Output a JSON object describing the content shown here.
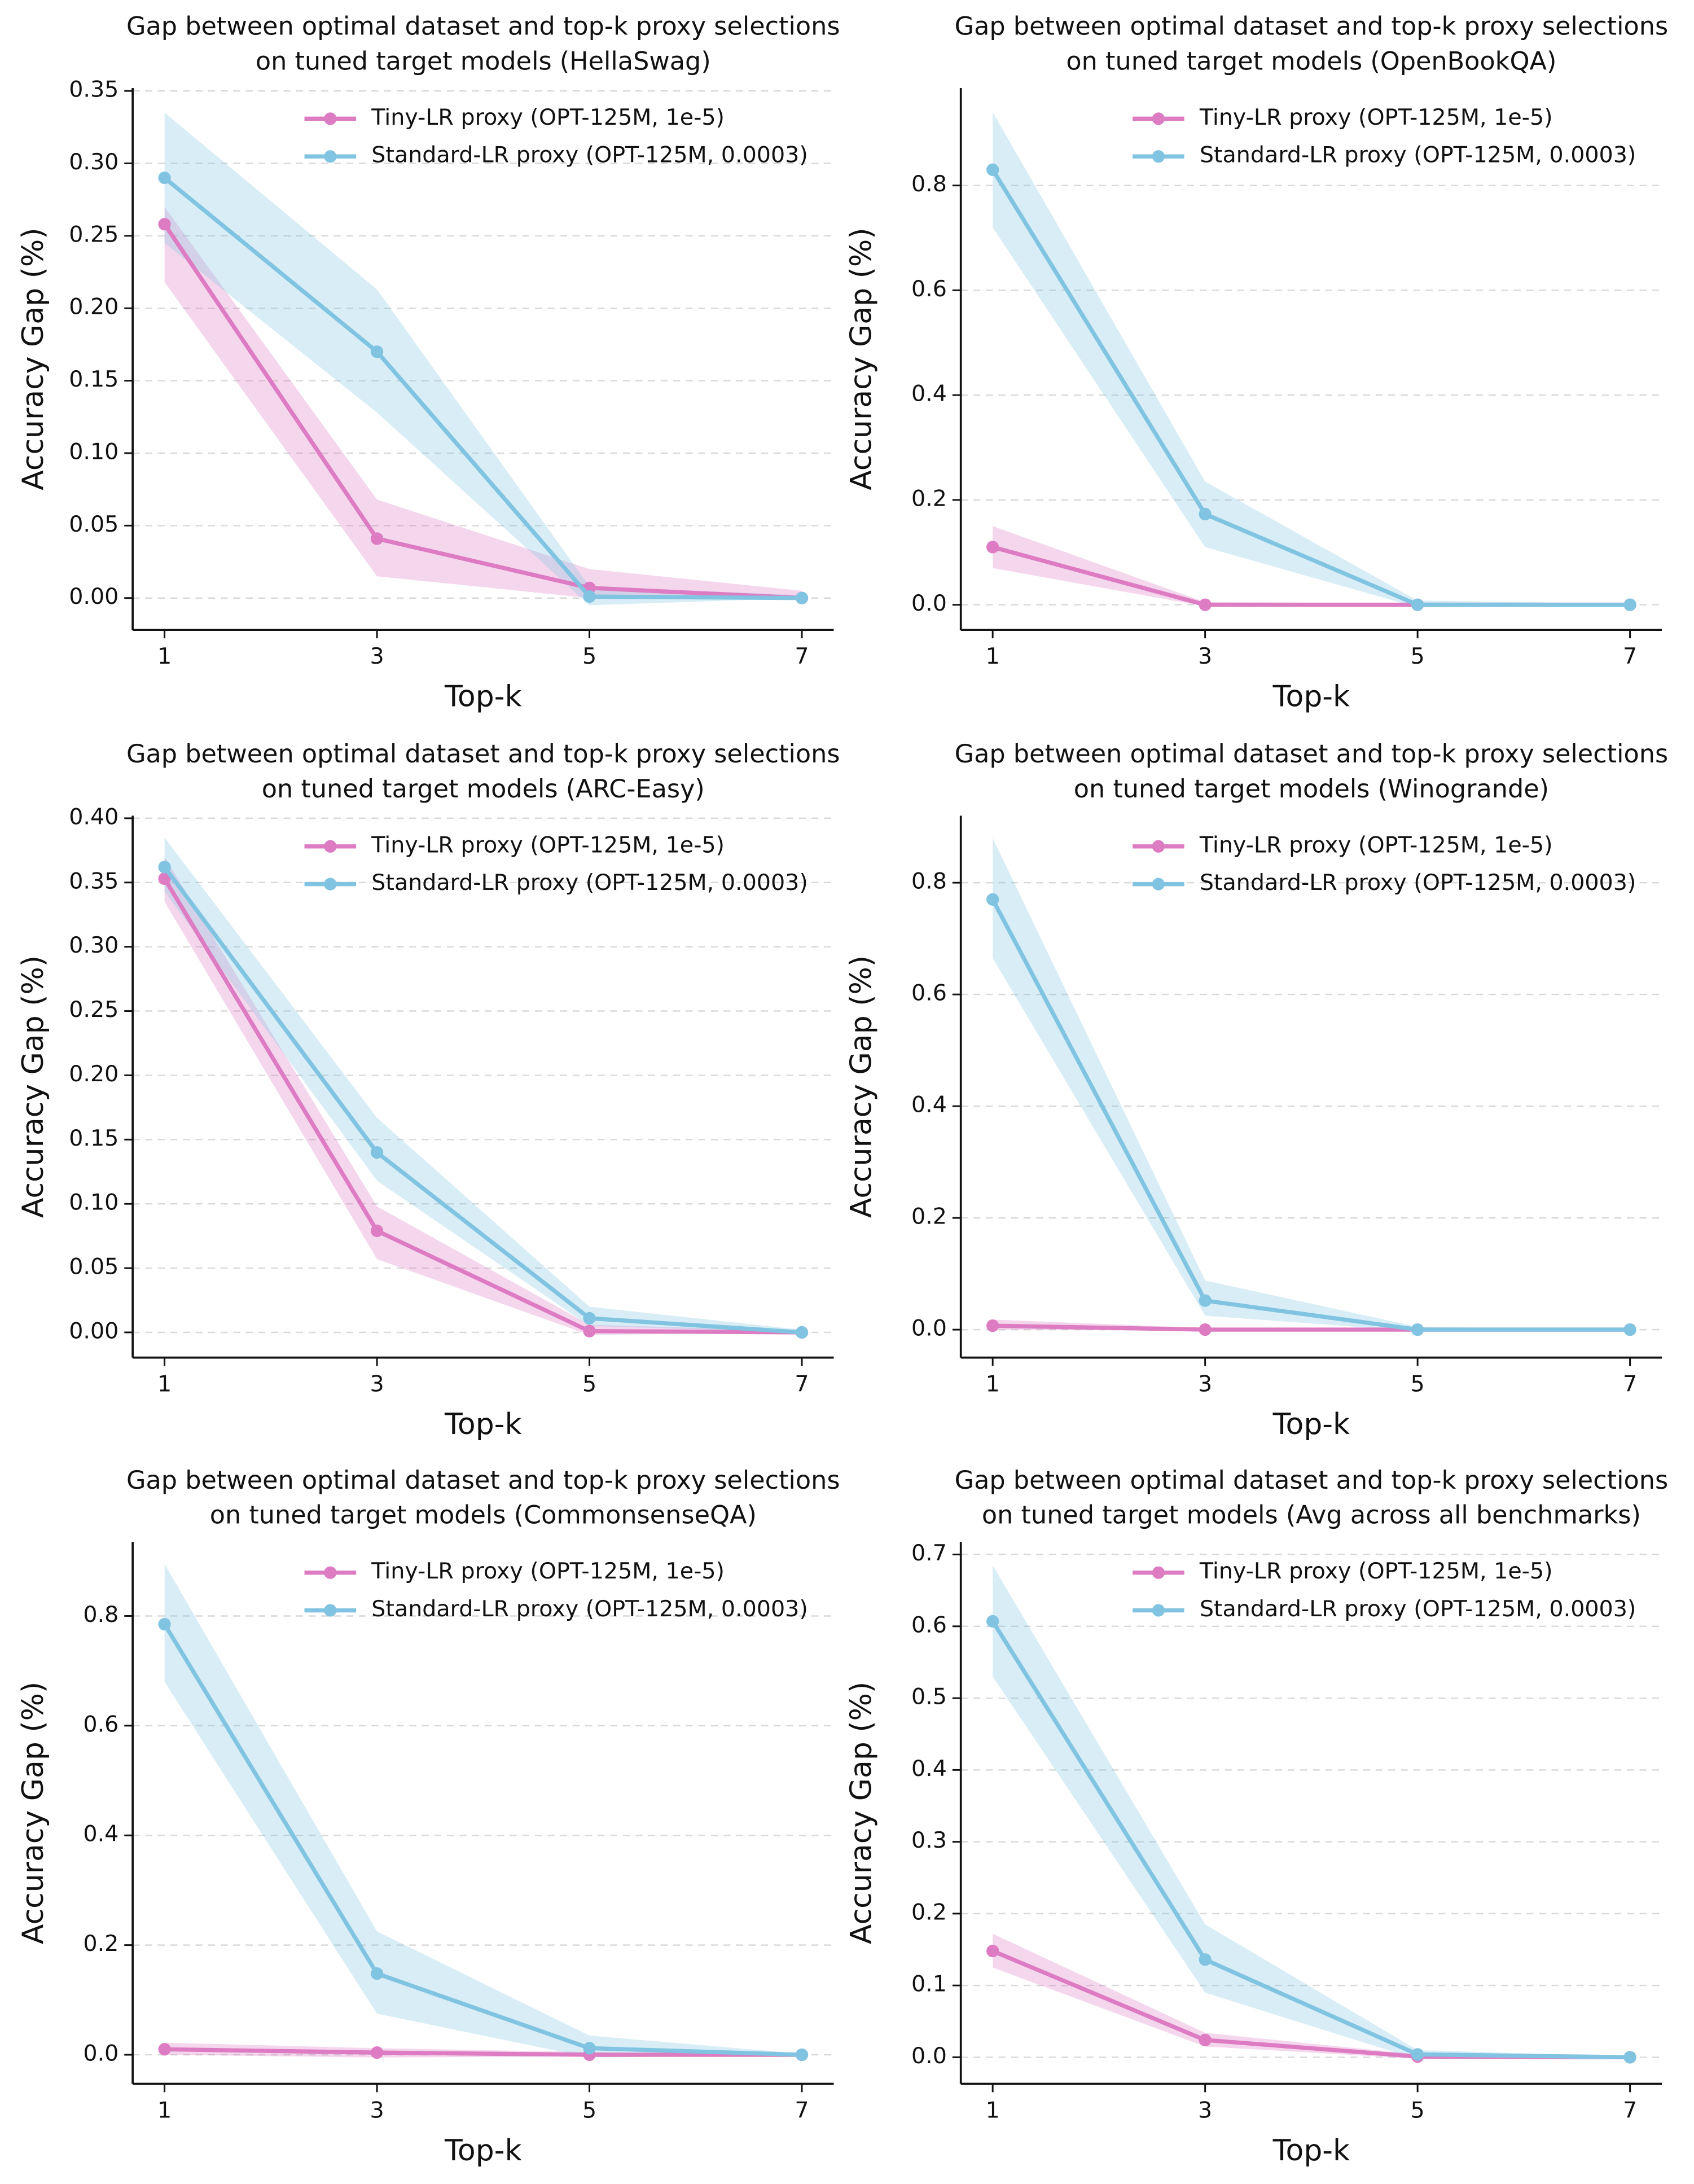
{
  "chart_data": [
    {
      "type": "line",
      "title": [
        "Gap between optimal dataset and top-k proxy selections",
        "on tuned target models (HellaSwag)"
      ],
      "xlabel": "Top-k",
      "ylabel": "Accuracy Gap (%)",
      "x": [
        1,
        3,
        5,
        7
      ],
      "xlim": [
        0.7,
        7.3
      ],
      "xticks": [
        1,
        3,
        5,
        7
      ],
      "ylim": [
        -0.022,
        0.352
      ],
      "yticks": [
        {
          "value": 0,
          "label": "0.00"
        },
        0.05,
        {
          "value": 0.1,
          "label": "0.10"
        },
        0.15,
        {
          "value": 0.2,
          "label": "0.20"
        },
        0.25,
        {
          "value": 0.3,
          "label": "0.30"
        },
        0.35
      ],
      "grid": true,
      "legend": "upper center",
      "series": [
        {
          "name": "Tiny-LR proxy (OPT-125M, 1e-5)",
          "color": "#dd7bc3",
          "values": [
            0.258,
            0.041,
            0.007,
            0.0
          ],
          "lower": [
            0.218,
            0.015,
            0.0,
            0.0
          ],
          "upper": [
            0.27,
            0.068,
            0.02,
            0.005
          ]
        },
        {
          "name": "Standard-LR proxy (OPT-125M, 0.0003)",
          "color": "#80c4e2",
          "values": [
            0.29,
            0.17,
            0.001,
            0.0
          ],
          "lower": [
            0.245,
            0.128,
            -0.005,
            0.0
          ],
          "upper": [
            0.335,
            0.213,
            0.008,
            0.002
          ]
        }
      ]
    },
    {
      "type": "line",
      "title": [
        "Gap between optimal dataset and top-k proxy selections",
        "on tuned target models (OpenBookQA)"
      ],
      "xlabel": "Top-k",
      "ylabel": "Accuracy Gap (%)",
      "x": [
        1,
        3,
        5,
        7
      ],
      "xlim": [
        0.7,
        7.3
      ],
      "xticks": [
        1,
        3,
        5,
        7
      ],
      "ylim": [
        -0.048,
        0.986
      ],
      "yticks": [
        {
          "value": 0,
          "label": "0.0"
        },
        0.2,
        0.4,
        0.6,
        0.8
      ],
      "grid": true,
      "legend": "upper center",
      "series": [
        {
          "name": "Tiny-LR proxy (OPT-125M, 1e-5)",
          "color": "#dd7bc3",
          "values": [
            0.11,
            0.0,
            0.0,
            0.0
          ],
          "lower": [
            0.07,
            -0.003,
            -0.002,
            0.0
          ],
          "upper": [
            0.15,
            0.005,
            0.003,
            0.0
          ]
        },
        {
          "name": "Standard-LR proxy (OPT-125M, 0.0003)",
          "color": "#80c4e2",
          "values": [
            0.83,
            0.173,
            0.0,
            0.0
          ],
          "lower": [
            0.72,
            0.11,
            -0.005,
            0.0
          ],
          "upper": [
            0.94,
            0.235,
            0.008,
            0.002
          ]
        }
      ]
    },
    {
      "type": "line",
      "title": [
        "Gap between optimal dataset and top-k proxy selections",
        "on tuned target models (ARC-Easy)"
      ],
      "xlabel": "Top-k",
      "ylabel": "Accuracy Gap (%)",
      "x": [
        1,
        3,
        5,
        7
      ],
      "xlim": [
        0.7,
        7.3
      ],
      "xticks": [
        1,
        3,
        5,
        7
      ],
      "ylim": [
        -0.0196,
        0.402
      ],
      "yticks": [
        {
          "value": 0,
          "label": "0.00"
        },
        0.05,
        {
          "value": 0.1,
          "label": "0.10"
        },
        0.15,
        {
          "value": 0.2,
          "label": "0.20"
        },
        0.25,
        {
          "value": 0.3,
          "label": "0.30"
        },
        0.35,
        {
          "value": 0.4,
          "label": "0.40"
        }
      ],
      "grid": true,
      "legend": "upper center",
      "series": [
        {
          "name": "Tiny-LR proxy (OPT-125M, 1e-5)",
          "color": "#dd7bc3",
          "values": [
            0.353,
            0.079,
            0.001,
            0.0
          ],
          "lower": [
            0.335,
            0.057,
            -0.002,
            0.0
          ],
          "upper": [
            0.37,
            0.098,
            0.006,
            0.001
          ]
        },
        {
          "name": "Standard-LR proxy (OPT-125M, 0.0003)",
          "color": "#80c4e2",
          "values": [
            0.362,
            0.14,
            0.011,
            0.0
          ],
          "lower": [
            0.343,
            0.118,
            0.005,
            0.0
          ],
          "upper": [
            0.385,
            0.167,
            0.02,
            0.002
          ]
        }
      ]
    },
    {
      "type": "line",
      "title": [
        "Gap between optimal dataset and top-k proxy selections",
        "on tuned target models (Winogrande)"
      ],
      "xlabel": "Top-k",
      "ylabel": "Accuracy Gap (%)",
      "x": [
        1,
        3,
        5,
        7
      ],
      "xlim": [
        0.7,
        7.3
      ],
      "xticks": [
        1,
        3,
        5,
        7
      ],
      "ylim": [
        -0.05,
        0.92
      ],
      "yticks": [
        {
          "value": 0,
          "label": "0.0"
        },
        0.2,
        0.4,
        0.6,
        0.8
      ],
      "grid": true,
      "legend": "upper center",
      "series": [
        {
          "name": "Tiny-LR proxy (OPT-125M, 1e-5)",
          "color": "#dd7bc3",
          "values": [
            0.007,
            0.0,
            0.0,
            0.0
          ],
          "lower": [
            0.0,
            -0.002,
            -0.001,
            0.0
          ],
          "upper": [
            0.018,
            0.003,
            0.002,
            0.0
          ]
        },
        {
          "name": "Standard-LR proxy (OPT-125M, 0.0003)",
          "color": "#80c4e2",
          "values": [
            0.77,
            0.052,
            0.0,
            0.0
          ],
          "lower": [
            0.665,
            0.025,
            -0.003,
            0.0
          ],
          "upper": [
            0.88,
            0.088,
            0.005,
            0.0
          ]
        }
      ]
    },
    {
      "type": "line",
      "title": [
        "Gap between optimal dataset and top-k proxy selections",
        "on tuned target models (CommonsenseQA)"
      ],
      "xlabel": "Top-k",
      "ylabel": "Accuracy Gap (%)",
      "x": [
        1,
        3,
        5,
        7
      ],
      "xlim": [
        0.7,
        7.3
      ],
      "xticks": [
        1,
        3,
        5,
        7
      ],
      "ylim": [
        -0.053,
        0.935
      ],
      "yticks": [
        {
          "value": 0,
          "label": "0.0"
        },
        0.2,
        0.4,
        0.6,
        0.8
      ],
      "grid": true,
      "legend": "upper center",
      "series": [
        {
          "name": "Tiny-LR proxy (OPT-125M, 1e-5)",
          "color": "#dd7bc3",
          "values": [
            0.01,
            0.004,
            0.0,
            0.0
          ],
          "lower": [
            0.0,
            -0.005,
            -0.003,
            0.0
          ],
          "upper": [
            0.022,
            0.012,
            0.005,
            0.0
          ]
        },
        {
          "name": "Standard-LR proxy (OPT-125M, 0.0003)",
          "color": "#80c4e2",
          "values": [
            0.785,
            0.148,
            0.012,
            0.0
          ],
          "lower": [
            0.68,
            0.075,
            -0.005,
            0.0
          ],
          "upper": [
            0.895,
            0.225,
            0.035,
            0.002
          ]
        }
      ]
    },
    {
      "type": "line",
      "title": [
        "Gap between optimal dataset and top-k proxy selections",
        "on tuned target models (Avg across all benchmarks)"
      ],
      "xlabel": "Top-k",
      "ylabel": "Accuracy Gap (%)",
      "x": [
        1,
        3,
        5,
        7
      ],
      "xlim": [
        0.7,
        7.3
      ],
      "xticks": [
        1,
        3,
        5,
        7
      ],
      "ylim": [
        -0.037,
        0.7175
      ],
      "yticks": [
        {
          "value": 0,
          "label": "0.0"
        },
        0.1,
        0.2,
        0.3,
        0.4,
        0.5,
        0.6,
        0.7
      ],
      "grid": true,
      "legend": "upper center",
      "series": [
        {
          "name": "Tiny-LR proxy (OPT-125M, 1e-5)",
          "color": "#dd7bc3",
          "values": [
            0.148,
            0.024,
            0.001,
            0.0
          ],
          "lower": [
            0.125,
            0.015,
            -0.002,
            0.0
          ],
          "upper": [
            0.172,
            0.034,
            0.004,
            0.0
          ]
        },
        {
          "name": "Standard-LR proxy (OPT-125M, 0.0003)",
          "color": "#80c4e2",
          "values": [
            0.607,
            0.136,
            0.004,
            0.0
          ],
          "lower": [
            0.53,
            0.09,
            -0.003,
            0.0
          ],
          "upper": [
            0.685,
            0.185,
            0.01,
            0.001
          ]
        }
      ]
    }
  ]
}
